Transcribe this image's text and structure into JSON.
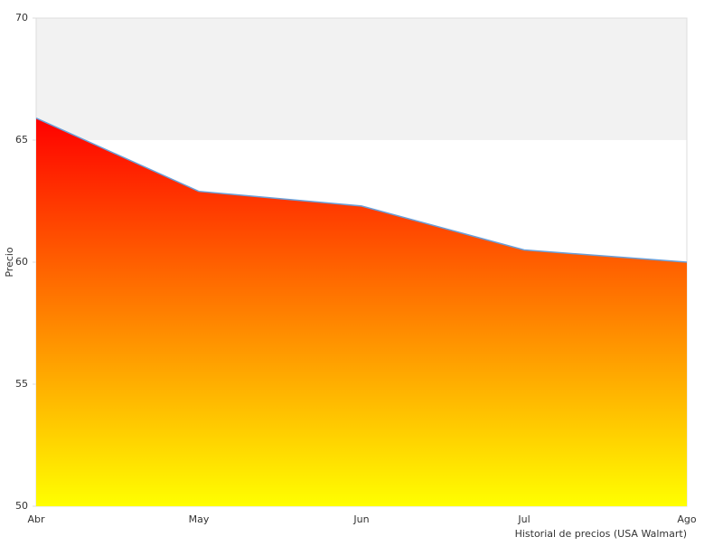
{
  "chart_data": {
    "type": "area",
    "x_label": "Historial de precios (USA Walmart)",
    "y_label": "Precio",
    "categories": [
      "Abr",
      "May",
      "Jun",
      "Jul",
      "Ago"
    ],
    "series": [
      {
        "name": "Precio",
        "color": "#6a9fd8",
        "values": [
          65.9,
          62.9,
          62.3,
          60.5,
          60.0
        ]
      }
    ],
    "fill_gradient": [
      "#ff0000",
      "#ffff00"
    ],
    "ylim": [
      50,
      70
    ],
    "yticks": [
      50,
      55,
      60,
      65,
      70
    ],
    "plot_bands": [
      {
        "from": 65,
        "to": 70,
        "color": "#f2f2f2"
      }
    ],
    "legend": false
  }
}
